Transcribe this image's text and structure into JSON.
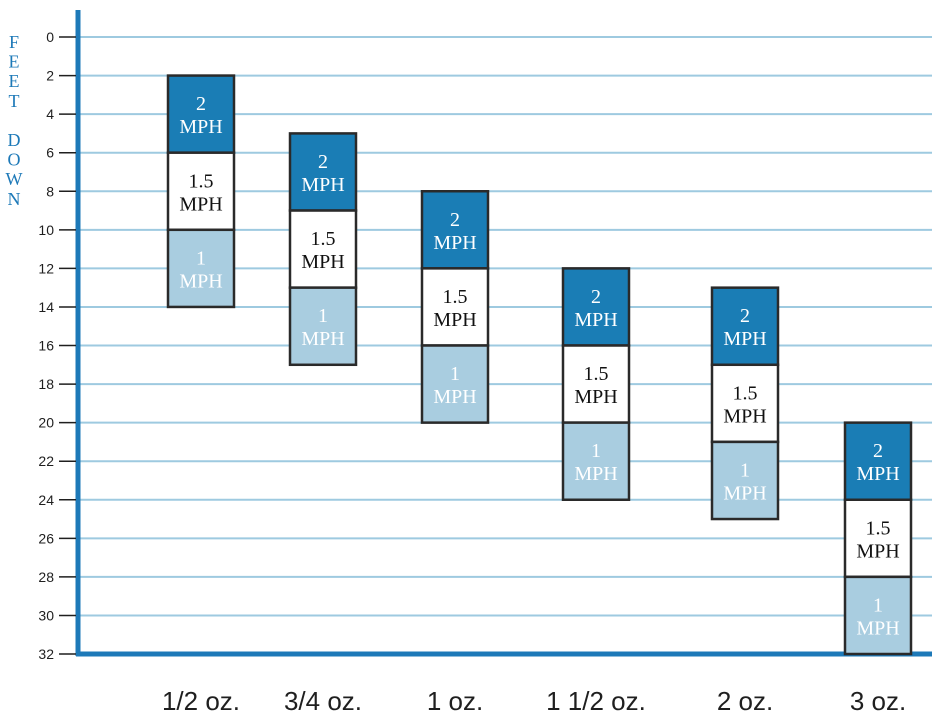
{
  "chart_data": {
    "type": "bar",
    "ylabel": "FEET DOWN",
    "ylabel_letters": [
      "F",
      "E",
      "E",
      "T",
      "",
      "D",
      "O",
      "W",
      "N"
    ],
    "y_axis_inverted": true,
    "ylim": [
      0,
      32
    ],
    "yticks": [
      "0",
      "2",
      "4",
      "6",
      "8",
      "10",
      "12",
      "14",
      "16",
      "18",
      "20",
      "22",
      "24",
      "26",
      "28",
      "30",
      "32"
    ],
    "grid": true,
    "categories": [
      "1/2 oz.",
      "3/4 oz.",
      "1 oz.",
      "1 1/2 oz.",
      "2 oz.",
      "3 oz."
    ],
    "series": [
      {
        "name": "2 MPH",
        "label_lines": [
          "2",
          "MPH"
        ],
        "color": "#1a7db5",
        "ranges": [
          [
            2,
            6
          ],
          [
            5,
            9
          ],
          [
            8,
            12
          ],
          [
            12,
            16
          ],
          [
            13,
            17
          ],
          [
            20,
            24
          ]
        ]
      },
      {
        "name": "1.5 MPH",
        "label_lines": [
          "1.5",
          "MPH"
        ],
        "color": "#ffffff",
        "ranges": [
          [
            6,
            10
          ],
          [
            9,
            13
          ],
          [
            12,
            16
          ],
          [
            16,
            20
          ],
          [
            17,
            21
          ],
          [
            24,
            28
          ]
        ]
      },
      {
        "name": "1 MPH",
        "label_lines": [
          "1",
          "MPH"
        ],
        "color": "#a9cde0",
        "ranges": [
          [
            10,
            14
          ],
          [
            13,
            17
          ],
          [
            16,
            20
          ],
          [
            20,
            24
          ],
          [
            21,
            25
          ],
          [
            28,
            32
          ]
        ]
      }
    ],
    "colors": {
      "axis": "#1d79b8",
      "grid": "#9ecae0",
      "border": "#2a2a2a"
    }
  }
}
